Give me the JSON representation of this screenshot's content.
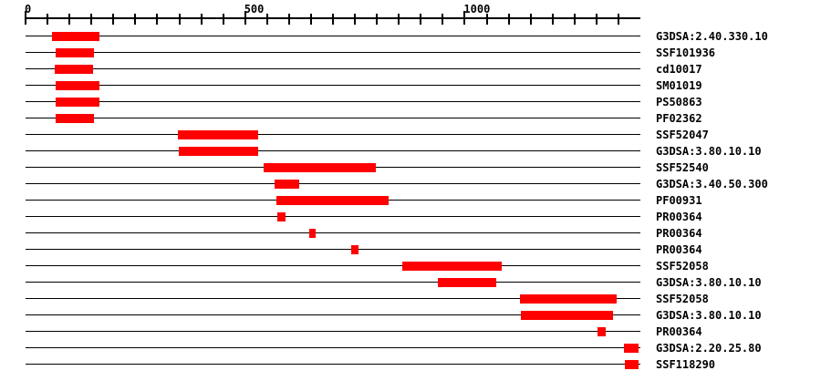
{
  "colors": {
    "background": "#ffffff",
    "line": "#000000",
    "bar": "#ff0000",
    "text": "#000000"
  },
  "chart_data": {
    "type": "span",
    "title": "",
    "xlabel": "",
    "description": "Protein signature match map: each track is a horizontal baseline spanning the sequence with a red block marking the matched region; signature accession labels on the right.",
    "axis": {
      "min": 0,
      "max": 1400,
      "minor_tick_interval": 50,
      "labeled_ticks": [
        {
          "value": 0,
          "label": "0"
        },
        {
          "value": 500,
          "label": "500"
        },
        {
          "value": 1000,
          "label": "1000"
        }
      ]
    },
    "tracks": [
      {
        "label": "G3DSA:2.40.330.10",
        "start": 60,
        "end": 168
      },
      {
        "label": "SSF101936",
        "start": 69,
        "end": 156
      },
      {
        "label": "cd10017",
        "start": 66,
        "end": 154
      },
      {
        "label": "SM01019",
        "start": 69,
        "end": 168
      },
      {
        "label": "PS50863",
        "start": 69,
        "end": 168
      },
      {
        "label": "PF02362",
        "start": 69,
        "end": 156
      },
      {
        "label": "SSF52047",
        "start": 347,
        "end": 530
      },
      {
        "label": "G3DSA:3.80.10.10",
        "start": 349,
        "end": 530
      },
      {
        "label": "SSF52540",
        "start": 542,
        "end": 798
      },
      {
        "label": "G3DSA:3.40.50.300",
        "start": 567,
        "end": 623
      },
      {
        "label": "PF00931",
        "start": 571,
        "end": 827
      },
      {
        "label": "PR00364",
        "start": 573,
        "end": 592
      },
      {
        "label": "PR00364",
        "start": 646,
        "end": 660
      },
      {
        "label": "PR00364",
        "start": 741,
        "end": 758
      },
      {
        "label": "SSF52058",
        "start": 858,
        "end": 1084
      },
      {
        "label": "G3DSA:3.80.10.10",
        "start": 939,
        "end": 1072
      },
      {
        "label": "SSF52058",
        "start": 1126,
        "end": 1346
      },
      {
        "label": "G3DSA:3.80.10.10",
        "start": 1128,
        "end": 1337
      },
      {
        "label": "PR00364",
        "start": 1302,
        "end": 1321
      },
      {
        "label": "G3DSA:2.20.25.80",
        "start": 1362,
        "end": 1396
      },
      {
        "label": "SSF118290",
        "start": 1364,
        "end": 1396
      }
    ]
  }
}
